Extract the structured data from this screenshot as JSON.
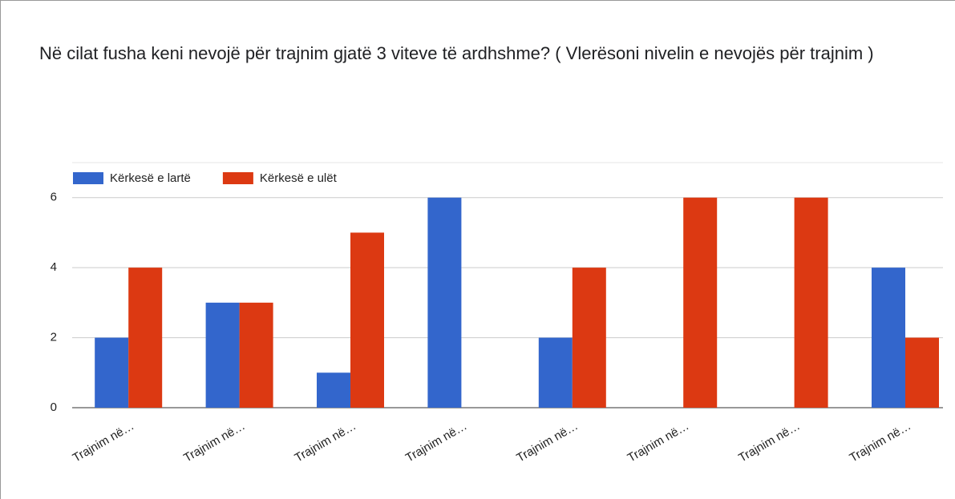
{
  "chart_data": {
    "type": "bar",
    "title": "Në cilat fusha keni nevojë për trajnim gjatë 3 viteve të ardhshme? ( Vlerësoni nivelin e nevojës për trajnim )",
    "categories": [
      "Trajnim në…",
      "Trajnim në…",
      "Trajnim në…",
      "Trajnim në…",
      "Trajnim në…",
      "Trajnim në…",
      "Trajnim në…",
      "Trajnim në…"
    ],
    "series": [
      {
        "name": "Kërkesë e lartë",
        "color": "#3366cc",
        "values": [
          2,
          3,
          1,
          6,
          2,
          0,
          0,
          4
        ]
      },
      {
        "name": "Kërkesë e ulët",
        "color": "#dc3912",
        "values": [
          4,
          3,
          5,
          0,
          4,
          6,
          6,
          2
        ]
      }
    ],
    "ylim": [
      0,
      7
    ],
    "yticks": [
      0,
      2,
      4,
      6
    ],
    "grid": true,
    "legend": "top-left"
  }
}
